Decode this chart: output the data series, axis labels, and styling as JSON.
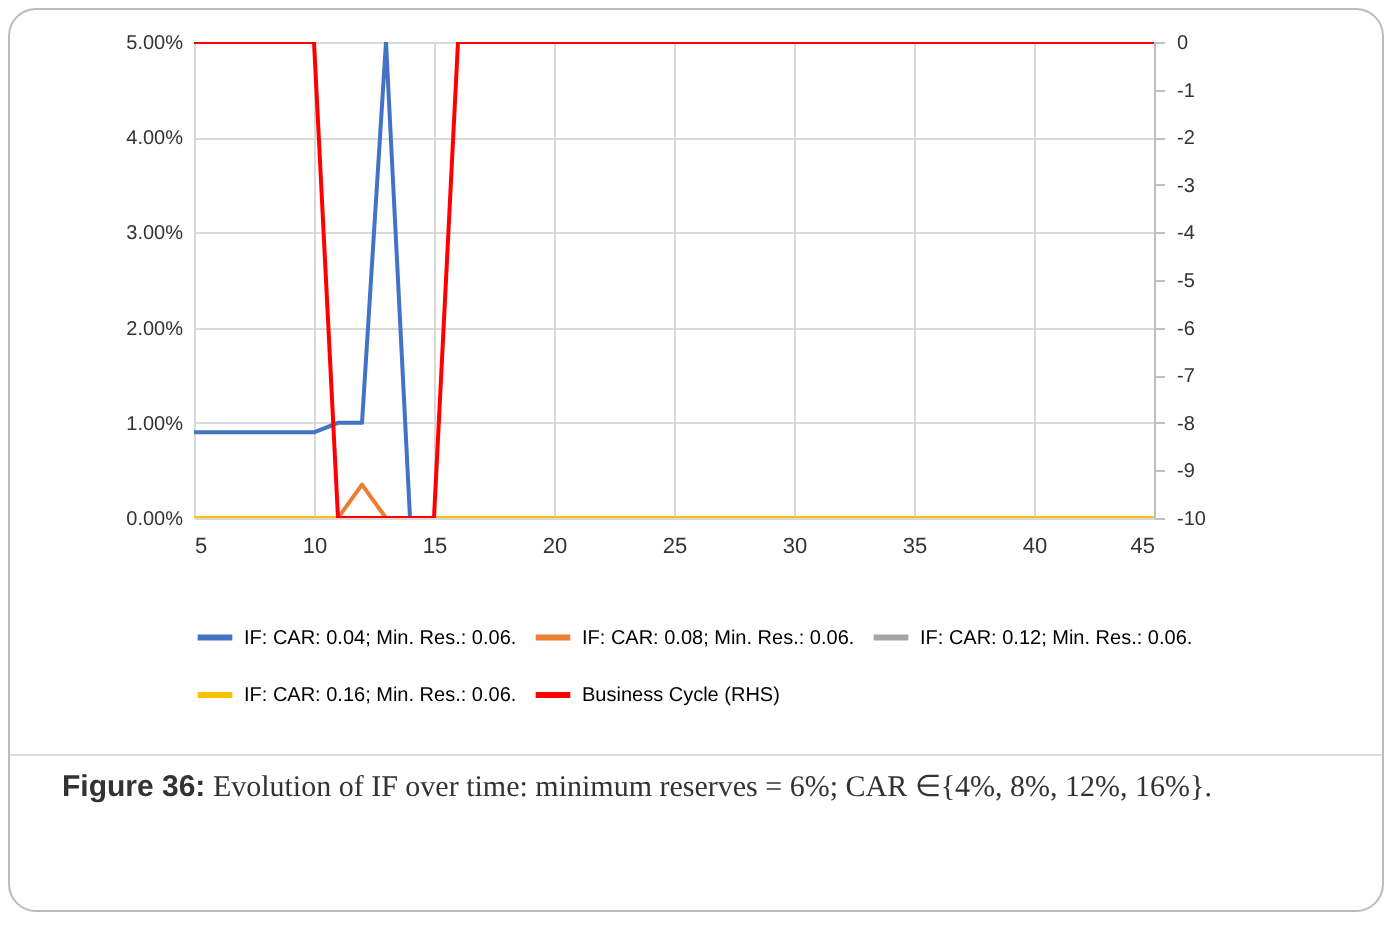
{
  "chart_data": {
    "type": "line",
    "xlim": [
      5,
      45
    ],
    "xticks": [
      5,
      10,
      15,
      20,
      25,
      30,
      35,
      40,
      45
    ],
    "ylim": [
      0,
      5
    ],
    "yticks": [
      {
        "value": 0,
        "label": "0.00%"
      },
      {
        "value": 1,
        "label": "1.00%"
      },
      {
        "value": 2,
        "label": "2.00%"
      },
      {
        "value": 3,
        "label": "3.00%"
      },
      {
        "value": 4,
        "label": "4.00%"
      },
      {
        "value": 5,
        "label": "5.00%"
      }
    ],
    "y2lim": [
      -10,
      0
    ],
    "y2ticks": [
      -10,
      -9,
      -8,
      -7,
      -6,
      -5,
      -4,
      -3,
      -2,
      -1,
      0
    ],
    "grid": true,
    "legend": "bottom",
    "line_style": "solid",
    "series": [
      {
        "name": "IF: CAR: 0.04; Min. Res.: 0.06.",
        "color": "#4472c4",
        "x": [
          5,
          10,
          11,
          12,
          13,
          14,
          45
        ],
        "values": [
          0.9,
          0.9,
          1.0,
          1.0,
          5.0,
          0,
          0
        ]
      },
      {
        "name": "IF: CAR: 0.08; Min. Res.: 0.06.",
        "color": "#ed7d31",
        "x": [
          11,
          12,
          13
        ],
        "values": [
          0,
          0.35,
          0
        ]
      },
      {
        "name": "IF: CAR: 0.12; Min. Res.: 0.06.",
        "color": "#a5a5a5"
      },
      {
        "name": "IF: CAR: 0.16; Min. Res.: 0.06.",
        "color": "#ffc000",
        "x": [
          5,
          45
        ],
        "values": [
          0,
          0
        ]
      },
      {
        "name": "Business Cycle (RHS)",
        "color": "#ff0000",
        "axis": "y2",
        "x": [
          5,
          10,
          11,
          15,
          16,
          45
        ],
        "values": [
          0,
          0,
          -10,
          -10,
          0,
          0
        ]
      }
    ],
    "annotations": [
      "Figure 36: Evolution of IF over time: minimum reserves = 6%; CAR ∈{4%, 8%, 12%, 16%}."
    ]
  }
}
